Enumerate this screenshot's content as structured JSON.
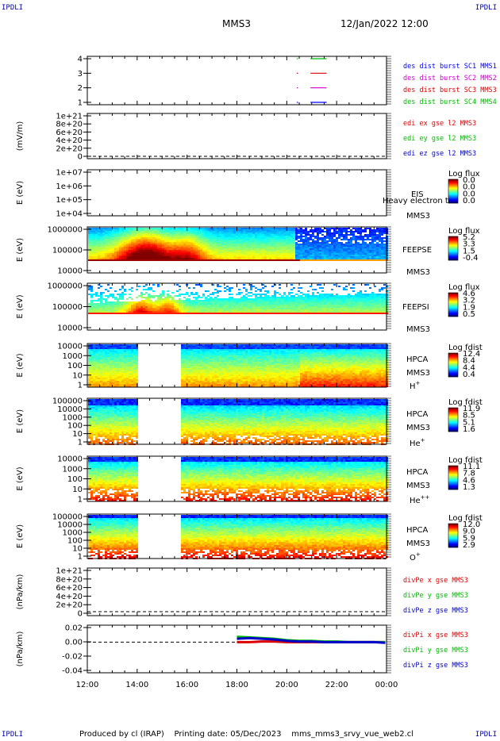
{
  "header": {
    "corner_label": "IPDLI",
    "spacecraft": "MMS3",
    "datetime": "12/Jan/2022 12:00"
  },
  "footer": {
    "produced_by": "Produced by cl (IRAP)",
    "printing_date": "Printing date: 05/Dec/2023",
    "script_name": "mms_mms3_srvy_vue_web2.cl"
  },
  "x_axis": {
    "labels": [
      "12:00",
      "14:00",
      "16:00",
      "18:00",
      "20:00",
      "22:00",
      "00:00"
    ],
    "range_hours": [
      12,
      24
    ]
  },
  "chart_data": [
    {
      "type": "line",
      "panel": "data-availability",
      "yticks": [
        "4",
        "3",
        "2",
        "1"
      ],
      "ylim": [
        0.5,
        4.5
      ],
      "series": [
        {
          "name": "des dist burst SC1 MMS1",
          "color": "#0000ff",
          "y": 1,
          "segments": [
            [
              20.4,
              20.45
            ],
            [
              20.95,
              21.6
            ]
          ]
        },
        {
          "name": "des dist burst SC2 MMS2",
          "color": "#cc00cc",
          "y": 2,
          "segments": [
            [
              20.4,
              20.45
            ],
            [
              20.95,
              21.6
            ]
          ]
        },
        {
          "name": "des dist burst SC3 MMS3",
          "color": "#dd0000",
          "y": 3,
          "segments": [
            [
              20.4,
              20.45
            ],
            [
              20.95,
              21.6
            ]
          ]
        },
        {
          "name": "des dist burst SC4 MMS4",
          "color": "#00bb00",
          "y": 4,
          "segments": [
            [
              20.4,
              20.45
            ],
            [
              20.95,
              21.6
            ]
          ]
        }
      ]
    },
    {
      "type": "line",
      "panel": "edi-e-field",
      "ylabel": "(mV/m)",
      "yticks": [
        "1e+21",
        "8e+20",
        "6e+20",
        "4e+20",
        "2e+20",
        "0"
      ],
      "series": [
        {
          "name": "edi ex gse l2 MMS3",
          "color": "#dd0000"
        },
        {
          "name": "edi ey gse l2 MMS3",
          "color": "#00bb00"
        },
        {
          "name": "edi ez gse l2 MMS3",
          "color": "#0000cc"
        }
      ]
    },
    {
      "type": "heatmap",
      "panel": "eis",
      "ylabel": "E (eV)",
      "yticks": [
        "1e+07",
        "1e+06",
        "1e+05",
        "1e+04"
      ],
      "instrument": "EIS",
      "overlay_text": "Heavy electron to",
      "spacecraft": "MMS3",
      "colorbar_title": "Log flux",
      "colorbar_ticks": [
        "0.0",
        "0.0",
        "0.0",
        "0.0"
      ]
    },
    {
      "type": "heatmap",
      "panel": "feepse",
      "ylabel": "E (eV)",
      "yticks": [
        "1000000",
        "100000",
        "10000"
      ],
      "instrument": "FEEPSE",
      "spacecraft": "MMS3",
      "colorbar_title": "Log flux",
      "colorbar_ticks": [
        "5.2",
        "3.3",
        "1.5",
        "-0.4"
      ]
    },
    {
      "type": "heatmap",
      "panel": "feepsi",
      "ylabel": "E (eV)",
      "yticks": [
        "1000000",
        "100000",
        "10000"
      ],
      "instrument": "FEEPSI",
      "spacecraft": "MMS3",
      "colorbar_title": "Log flux",
      "colorbar_ticks": [
        "4.6",
        "3.2",
        "1.9",
        "0.5"
      ]
    },
    {
      "type": "heatmap",
      "panel": "hpca-h",
      "ylabel": "E (eV)",
      "yticks": [
        "10000",
        "1000",
        "100",
        "10",
        "1"
      ],
      "instrument": "HPCA",
      "spacecraft": "MMS3",
      "species": "H",
      "species_charge": "+",
      "data_gap_hours": [
        14.0,
        15.75
      ],
      "colorbar_title": "Log fdist",
      "colorbar_ticks": [
        "12.4",
        "8.4",
        "4.4",
        "0.4"
      ]
    },
    {
      "type": "heatmap",
      "panel": "hpca-he",
      "ylabel": "E (eV)",
      "yticks": [
        "100000",
        "10000",
        "1000",
        "100",
        "10",
        "1"
      ],
      "instrument": "HPCA",
      "spacecraft": "MMS3",
      "species": "He",
      "species_charge": "+",
      "data_gap_hours": [
        14.0,
        15.75
      ],
      "colorbar_title": "Log fdist",
      "colorbar_ticks": [
        "11.9",
        "8.5",
        "5.1",
        "1.6"
      ]
    },
    {
      "type": "heatmap",
      "panel": "hpca-he2",
      "ylabel": "E (eV)",
      "yticks": [
        "10000",
        "1000",
        "100",
        "10",
        "1"
      ],
      "instrument": "HPCA",
      "spacecraft": "MMS3",
      "species": "He",
      "species_charge": "++",
      "data_gap_hours": [
        14.0,
        15.75
      ],
      "colorbar_title": "Log fdist",
      "colorbar_ticks": [
        "11.1",
        "7.8",
        "4.6",
        "1.3"
      ]
    },
    {
      "type": "heatmap",
      "panel": "hpca-o",
      "ylabel": "E (eV)",
      "yticks": [
        "100000",
        "10000",
        "1000",
        "100",
        "10",
        "1"
      ],
      "instrument": "HPCA",
      "spacecraft": "MMS3",
      "species": "O",
      "species_charge": "+",
      "data_gap_hours": [
        14.0,
        15.75
      ],
      "colorbar_title": "Log fdist",
      "colorbar_ticks": [
        "12.0",
        "9.0",
        "5.9",
        "2.9"
      ]
    },
    {
      "type": "line",
      "panel": "divpe",
      "ylabel": "(nPa/km)",
      "yticks": [
        "1e+21",
        "8e+20",
        "6e+20",
        "4e+20",
        "2e+20",
        "0"
      ],
      "series": [
        {
          "name": "divPe x gse MMS3",
          "color": "#dd0000"
        },
        {
          "name": "divPe y gse MMS3",
          "color": "#00bb00"
        },
        {
          "name": "divPe z gse MMS3",
          "color": "#0000cc"
        }
      ]
    },
    {
      "type": "line",
      "panel": "divpi",
      "ylabel": "(nPa/km)",
      "yticks": [
        "0.02",
        "0.00",
        "-0.02",
        "-0.04"
      ],
      "ylim": [
        -0.045,
        0.025
      ],
      "x": [
        18.0,
        18.5,
        19.0,
        19.5,
        20.0,
        20.5,
        21.0,
        21.5,
        22.0,
        22.5,
        23.0,
        23.5,
        23.95
      ],
      "series": [
        {
          "name": "divPi x gse MMS3",
          "color": "#dd0000",
          "values": [
            0.0,
            0.0,
            0.001,
            0.001,
            0.0,
            0.0,
            0.0,
            0.0,
            0.0,
            0.0,
            0.0,
            0.0,
            0.0
          ]
        },
        {
          "name": "divPi y gse MMS3",
          "color": "#00bb00",
          "values": [
            0.008,
            0.007,
            0.006,
            0.005,
            0.003,
            0.002,
            0.002,
            0.001,
            0.001,
            0.0,
            0.0,
            0.0,
            0.0
          ]
        },
        {
          "name": "divPi z gse MMS3",
          "color": "#0000cc",
          "values": [
            0.005,
            0.006,
            0.005,
            0.004,
            0.002,
            0.001,
            0.001,
            0.0,
            0.0,
            0.0,
            0.0,
            0.0,
            -0.001
          ]
        }
      ]
    }
  ]
}
